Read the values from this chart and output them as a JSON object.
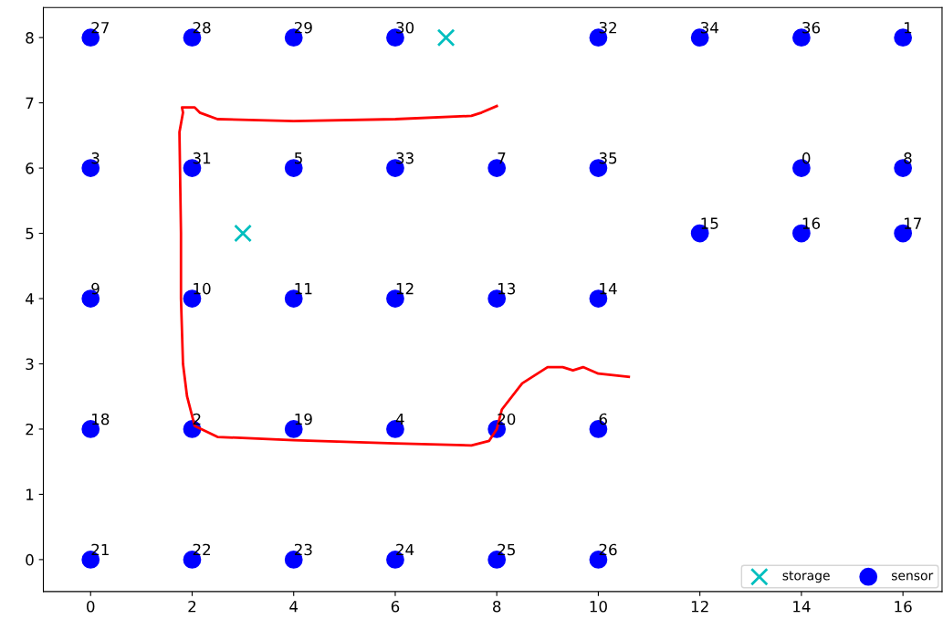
{
  "chart_data": {
    "type": "scatter",
    "xlim": [
      -0.93,
      16.77
    ],
    "ylim": [
      -0.49,
      8.46
    ],
    "xticks": [
      0,
      2,
      4,
      6,
      8,
      10,
      12,
      14,
      16
    ],
    "yticks": [
      0,
      1,
      2,
      3,
      4,
      5,
      6,
      7,
      8
    ],
    "grid": false,
    "legend": "bottom right",
    "series": [
      {
        "name": "storage",
        "marker": "cross",
        "color": "#00bfbf",
        "x": [
          7,
          3
        ],
        "values": [
          8,
          5
        ]
      },
      {
        "name": "sensor",
        "marker": "circle",
        "color": "#0000ff",
        "x": [
          0,
          2,
          4,
          6,
          10,
          12,
          14,
          16,
          0,
          2,
          4,
          6,
          8,
          10,
          14,
          16,
          12,
          14,
          16,
          0,
          2,
          4,
          6,
          8,
          10,
          0,
          2,
          4,
          6,
          8,
          10,
          0,
          2,
          4,
          6,
          8,
          10
        ],
        "values": [
          8,
          8,
          8,
          8,
          8,
          8,
          8,
          8,
          6,
          6,
          6,
          6,
          6,
          6,
          6,
          6,
          5,
          5,
          5,
          4,
          4,
          4,
          4,
          4,
          4,
          2,
          2,
          2,
          2,
          2,
          2,
          0,
          0,
          0,
          0,
          0,
          0
        ]
      },
      {
        "type": "line",
        "color": "#ff0000",
        "line_style": "solid",
        "x": [
          8.0,
          7.7,
          7.5,
          6.0,
          4.0,
          2.5,
          2.15,
          2.05,
          1.8,
          1.82,
          1.75,
          1.78,
          1.78,
          1.82,
          1.9,
          2.05,
          2.5,
          4.0,
          6.0,
          7.5,
          7.85,
          8.0,
          8.1,
          8.5,
          9.0,
          9.3,
          9.5,
          9.7,
          10.0,
          10.6
        ],
        "values": [
          6.95,
          6.85,
          6.8,
          6.75,
          6.72,
          6.75,
          6.85,
          6.93,
          6.93,
          6.85,
          6.55,
          5.0,
          4.0,
          3.0,
          2.5,
          2.05,
          1.88,
          1.83,
          1.78,
          1.75,
          1.82,
          2.0,
          2.3,
          2.7,
          2.95,
          2.95,
          2.9,
          2.95,
          2.85,
          2.8
        ]
      }
    ],
    "annotations": [
      {
        "text": "27",
        "x": 0,
        "y": 8
      },
      {
        "text": "28",
        "x": 2,
        "y": 8
      },
      {
        "text": "29",
        "x": 4,
        "y": 8
      },
      {
        "text": "30",
        "x": 6,
        "y": 8
      },
      {
        "text": "32",
        "x": 10,
        "y": 8
      },
      {
        "text": "34",
        "x": 12,
        "y": 8
      },
      {
        "text": "36",
        "x": 14,
        "y": 8
      },
      {
        "text": "1",
        "x": 16,
        "y": 8
      },
      {
        "text": "3",
        "x": 0,
        "y": 6
      },
      {
        "text": "31",
        "x": 2,
        "y": 6
      },
      {
        "text": "5",
        "x": 4,
        "y": 6
      },
      {
        "text": "33",
        "x": 6,
        "y": 6
      },
      {
        "text": "7",
        "x": 8,
        "y": 6
      },
      {
        "text": "35",
        "x": 10,
        "y": 6
      },
      {
        "text": "0",
        "x": 14,
        "y": 6
      },
      {
        "text": "8",
        "x": 16,
        "y": 6
      },
      {
        "text": "15",
        "x": 12,
        "y": 5
      },
      {
        "text": "16",
        "x": 14,
        "y": 5
      },
      {
        "text": "17",
        "x": 16,
        "y": 5
      },
      {
        "text": "9",
        "x": 0,
        "y": 4
      },
      {
        "text": "10",
        "x": 2,
        "y": 4
      },
      {
        "text": "11",
        "x": 4,
        "y": 4
      },
      {
        "text": "12",
        "x": 6,
        "y": 4
      },
      {
        "text": "13",
        "x": 8,
        "y": 4
      },
      {
        "text": "14",
        "x": 10,
        "y": 4
      },
      {
        "text": "18",
        "x": 0,
        "y": 2
      },
      {
        "text": "2",
        "x": 2,
        "y": 2
      },
      {
        "text": "19",
        "x": 4,
        "y": 2
      },
      {
        "text": "4",
        "x": 6,
        "y": 2
      },
      {
        "text": "20",
        "x": 8,
        "y": 2
      },
      {
        "text": "6",
        "x": 10,
        "y": 2
      },
      {
        "text": "21",
        "x": 0,
        "y": 0
      },
      {
        "text": "22",
        "x": 2,
        "y": 0
      },
      {
        "text": "23",
        "x": 4,
        "y": 0
      },
      {
        "text": "24",
        "x": 6,
        "y": 0
      },
      {
        "text": "25",
        "x": 8,
        "y": 0
      },
      {
        "text": "26",
        "x": 10,
        "y": 0
      }
    ]
  }
}
